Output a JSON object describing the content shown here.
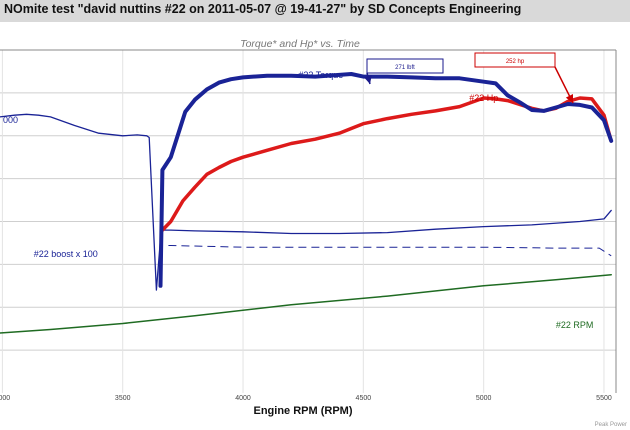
{
  "page": {
    "title": "NOmite test \"david nuttins #22 on 2011-05-07 @ 19-41-27\" by SD Concepts Engineering"
  },
  "chart_data": {
    "type": "line",
    "title": "Torque* and Hp* vs. Time",
    "xlabel": "Engine RPM (RPM)",
    "x_ticks": [
      3000,
      3500,
      4000,
      4500,
      5000,
      5500
    ],
    "xlim": [
      2990,
      5550
    ],
    "left_axis_fragment": "000",
    "footer_note": "Peak Power",
    "annotations": [
      {
        "text": "271 lbft",
        "series": "#22 Torque",
        "x": 4450,
        "color": "#1a1a8c"
      },
      {
        "text": "252 hp",
        "series": "#22 Hp",
        "x": 5340,
        "color": "#cc0000"
      }
    ],
    "series": [
      {
        "name": "#22 Torque",
        "color": "#1a2396",
        "width": 4,
        "values": [
          [
            3657,
            125
          ],
          [
            3665,
            260
          ],
          [
            3700,
            275
          ],
          [
            3760,
            328
          ],
          [
            3800,
            342
          ],
          [
            3850,
            354
          ],
          [
            3900,
            362
          ],
          [
            3950,
            366
          ],
          [
            4000,
            368
          ],
          [
            4100,
            370
          ],
          [
            4200,
            370
          ],
          [
            4300,
            369
          ],
          [
            4400,
            371
          ],
          [
            4450,
            372
          ],
          [
            4500,
            369
          ],
          [
            4600,
            369
          ],
          [
            4700,
            368
          ],
          [
            4800,
            367
          ],
          [
            4900,
            367
          ],
          [
            5000,
            363
          ],
          [
            5050,
            361
          ],
          [
            5100,
            347
          ],
          [
            5150,
            339
          ],
          [
            5200,
            330
          ],
          [
            5250,
            329
          ],
          [
            5300,
            333
          ],
          [
            5350,
            337
          ],
          [
            5400,
            336
          ],
          [
            5450,
            333
          ],
          [
            5500,
            318
          ],
          [
            5530,
            294
          ]
        ]
      },
      {
        "name": "#22 Hp",
        "color": "#dd1a1a",
        "width": 3.5,
        "values": [
          [
            3665,
            190
          ],
          [
            3700,
            200
          ],
          [
            3750,
            224
          ],
          [
            3800,
            240
          ],
          [
            3850,
            255
          ],
          [
            3900,
            263
          ],
          [
            3950,
            270
          ],
          [
            4000,
            275
          ],
          [
            4100,
            283
          ],
          [
            4200,
            291
          ],
          [
            4300,
            296
          ],
          [
            4400,
            303
          ],
          [
            4500,
            314
          ],
          [
            4600,
            320
          ],
          [
            4700,
            325
          ],
          [
            4800,
            329
          ],
          [
            4900,
            334
          ],
          [
            5000,
            344
          ],
          [
            5050,
            343
          ],
          [
            5100,
            341
          ],
          [
            5200,
            332
          ],
          [
            5250,
            329
          ],
          [
            5300,
            332
          ],
          [
            5350,
            340
          ],
          [
            5400,
            344
          ],
          [
            5450,
            343
          ],
          [
            5500,
            324
          ],
          [
            5530,
            294
          ]
        ]
      },
      {
        "name": "#22 boost x 100",
        "color": "#1a2396",
        "width": 1.3,
        "values": [
          [
            2990,
            322
          ],
          [
            3050,
            324
          ],
          [
            3100,
            325
          ],
          [
            3150,
            324
          ],
          [
            3200,
            322
          ],
          [
            3300,
            312
          ],
          [
            3400,
            303
          ],
          [
            3500,
            300
          ],
          [
            3560,
            301
          ],
          [
            3600,
            300
          ],
          [
            3610,
            298
          ],
          [
            3640,
            120
          ],
          [
            3660,
            190
          ],
          [
            3700,
            190
          ],
          [
            3800,
            189
          ],
          [
            4000,
            188
          ],
          [
            4200,
            186
          ],
          [
            4400,
            186
          ],
          [
            4600,
            187
          ],
          [
            4800,
            191
          ],
          [
            5000,
            194
          ],
          [
            5200,
            196
          ],
          [
            5400,
            200
          ],
          [
            5500,
            203
          ],
          [
            5530,
            213
          ]
        ]
      },
      {
        "name": "#22 RPM",
        "color": "#1f6b22",
        "width": 1.5,
        "values": [
          [
            2990,
            70
          ],
          [
            3200,
            74
          ],
          [
            3500,
            81
          ],
          [
            3800,
            90
          ],
          [
            4200,
            103
          ],
          [
            4600,
            113
          ],
          [
            5000,
            125
          ],
          [
            5300,
            132
          ],
          [
            5530,
            138
          ]
        ]
      }
    ],
    "dashed_series": {
      "color": "#1a2396",
      "values": [
        [
          3690,
          172
        ],
        [
          3700,
          172
        ],
        [
          4000,
          170
        ],
        [
          4500,
          170
        ],
        [
          5000,
          170
        ],
        [
          5300,
          169
        ],
        [
          5480,
          169
        ],
        [
          5530,
          160
        ]
      ]
    },
    "series_labels": [
      {
        "text": "#22 Torque",
        "color": "#1a2396",
        "x": 4230
      },
      {
        "text": "#22 Hp",
        "color": "#cc0000",
        "x": 4940
      },
      {
        "text": "#22 boost x 100",
        "color": "#1a2396",
        "x": 3130
      },
      {
        "text": "#22 RPM",
        "color": "#1f6b22",
        "x": 5300
      }
    ],
    "grid": true
  }
}
